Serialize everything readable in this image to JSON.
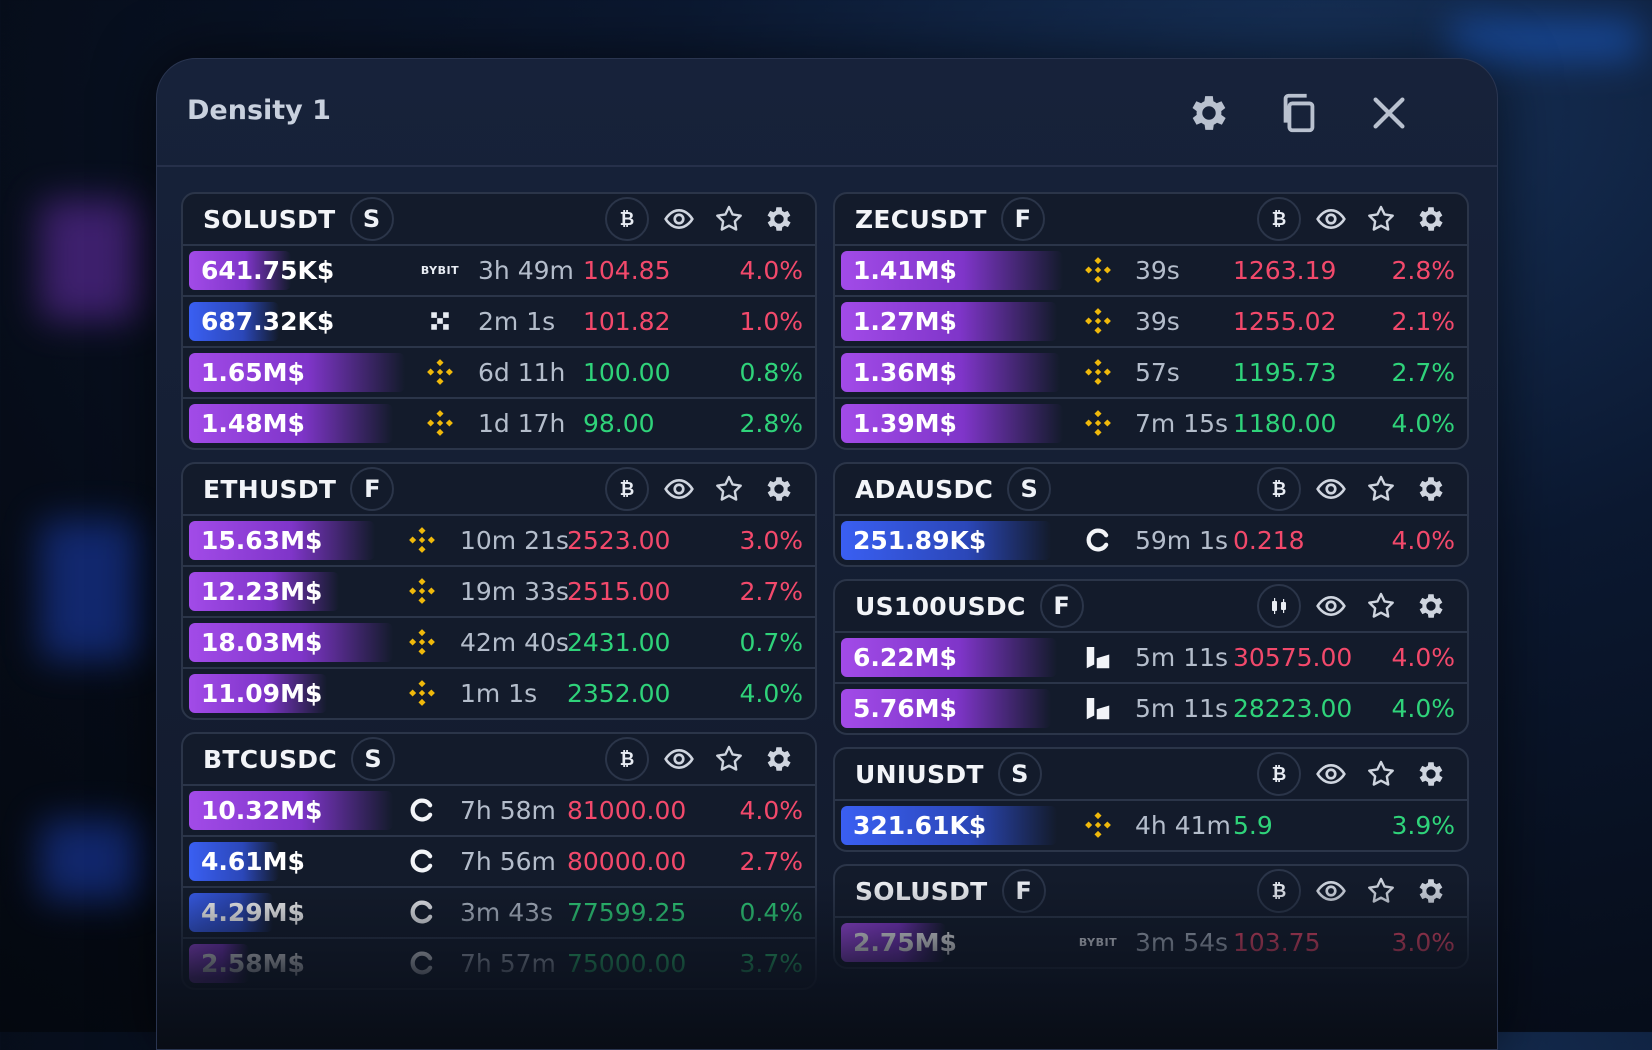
{
  "window": {
    "title": "Density 1"
  },
  "colors": {
    "red": "#f2496b",
    "green": "#2fd37a",
    "purple": "#a24be8",
    "blue": "#3a5ff2"
  },
  "columns": [
    {
      "cards": [
        {
          "symbol": "SOLUSDT",
          "market": "S",
          "base_icon": "bitcoin-icon",
          "rows": [
            {
              "amount": "641.75K$",
              "bar": "purple",
              "fill": 0.34,
              "exchange": "bybit",
              "exchange_label": "BYBIT",
              "time": "3h 49m",
              "price": "104.85",
              "pct": "4.0%",
              "side": "red"
            },
            {
              "amount": "687.32K$",
              "bar": "blue",
              "fill": 0.3,
              "exchange": "okx",
              "time": "2m 1s",
              "price": "101.82",
              "pct": "1.0%",
              "side": "red"
            },
            {
              "amount": "1.65M$",
              "bar": "purple",
              "fill": 0.72,
              "exchange": "binance",
              "time": "6d 11h",
              "price": "100.00",
              "pct": "0.8%",
              "side": "green"
            },
            {
              "amount": "1.48M$",
              "bar": "purple",
              "fill": 0.68,
              "exchange": "binance",
              "time": "1d 17h",
              "price": "98.00",
              "pct": "2.8%",
              "side": "green"
            }
          ]
        },
        {
          "symbol": "ETHUSDT",
          "market": "F",
          "base_icon": "bitcoin-icon",
          "rows": [
            {
              "amount": "15.63M$",
              "bar": "purple",
              "fill": 0.62,
              "exchange": "binance",
              "time": "10m 21s",
              "price": "2523.00",
              "pct": "3.0%",
              "side": "red"
            },
            {
              "amount": "12.23M$",
              "bar": "purple",
              "fill": 0.5,
              "exchange": "binance",
              "time": "19m 33s",
              "price": "2515.00",
              "pct": "2.7%",
              "side": "red"
            },
            {
              "amount": "18.03M$",
              "bar": "purple",
              "fill": 0.68,
              "exchange": "binance",
              "time": "42m 40s",
              "price": "2431.00",
              "pct": "0.7%",
              "side": "green"
            },
            {
              "amount": "11.09M$",
              "bar": "purple",
              "fill": 0.46,
              "exchange": "binance",
              "time": "1m 1s",
              "price": "2352.00",
              "pct": "4.0%",
              "side": "green"
            }
          ]
        },
        {
          "symbol": "BTCUSDC",
          "market": "S",
          "base_icon": "bitcoin-icon",
          "rows": [
            {
              "amount": "10.32M$",
              "bar": "purple",
              "fill": 0.68,
              "exchange": "coinbase",
              "time": "7h 58m",
              "price": "81000.00",
              "pct": "4.0%",
              "side": "red"
            },
            {
              "amount": "4.61M$",
              "bar": "blue",
              "fill": 0.3,
              "exchange": "coinbase",
              "time": "7h 56m",
              "price": "80000.00",
              "pct": "2.7%",
              "side": "red"
            },
            {
              "amount": "4.29M$",
              "bar": "blue",
              "fill": 0.28,
              "exchange": "coinbase",
              "time": "3m 43s",
              "price": "77599.25",
              "pct": "0.4%",
              "side": "green"
            },
            {
              "amount": "2.58M$",
              "bar": "purple",
              "fill": 0.2,
              "exchange": "coinbase",
              "time": "7h 57m",
              "price": "75000.00",
              "pct": "3.7%",
              "side": "green"
            }
          ]
        }
      ]
    },
    {
      "cards": [
        {
          "symbol": "ZECUSDT",
          "market": "F",
          "base_icon": "bitcoin-icon",
          "rows": [
            {
              "amount": "1.41M$",
              "bar": "purple",
              "fill": 0.74,
              "exchange": "binance",
              "time": "39s",
              "price": "1263.19",
              "pct": "2.8%",
              "side": "red"
            },
            {
              "amount": "1.27M$",
              "bar": "purple",
              "fill": 0.72,
              "exchange": "binance",
              "time": "39s",
              "price": "1255.02",
              "pct": "2.1%",
              "side": "red"
            },
            {
              "amount": "1.36M$",
              "bar": "purple",
              "fill": 0.73,
              "exchange": "binance",
              "time": "57s",
              "price": "1195.73",
              "pct": "2.7%",
              "side": "green"
            },
            {
              "amount": "1.39M$",
              "bar": "purple",
              "fill": 0.74,
              "exchange": "binance",
              "time": "7m 15s",
              "price": "1180.00",
              "pct": "4.0%",
              "side": "green"
            }
          ]
        },
        {
          "symbol": "ADAUSDC",
          "market": "S",
          "base_icon": "bitcoin-icon",
          "rows": [
            {
              "amount": "251.89K$",
              "bar": "blue",
              "fill": 0.7,
              "exchange": "coinbase",
              "time": "59m 1s",
              "price": "0.218",
              "pct": "4.0%",
              "side": "red"
            }
          ]
        },
        {
          "symbol": "US100USDC",
          "market": "F",
          "base_icon": "candles-icon",
          "rows": [
            {
              "amount": "6.22M$",
              "bar": "purple",
              "fill": 0.72,
              "exchange": "hyperliquid",
              "time": "5m 11s",
              "price": "30575.00",
              "pct": "4.0%",
              "side": "red"
            },
            {
              "amount": "5.76M$",
              "bar": "purple",
              "fill": 0.7,
              "exchange": "hyperliquid",
              "time": "5m 11s",
              "price": "28223.00",
              "pct": "4.0%",
              "side": "green"
            }
          ]
        },
        {
          "symbol": "UNIUSDT",
          "market": "S",
          "base_icon": "bitcoin-icon",
          "rows": [
            {
              "amount": "321.61K$",
              "bar": "blue",
              "fill": 0.72,
              "exchange": "binance",
              "time": "4h 41m",
              "price": "5.9",
              "pct": "3.9%",
              "side": "green"
            }
          ]
        },
        {
          "symbol": "SOLUSDT",
          "market": "F",
          "base_icon": "bitcoin-icon",
          "rows": [
            {
              "amount": "2.75M$",
              "bar": "purple",
              "fill": 0.35,
              "exchange": "bybit",
              "exchange_label": "BYBIT",
              "time": "3m 54s",
              "price": "103.75",
              "pct": "3.0%",
              "side": "red"
            }
          ]
        }
      ]
    }
  ]
}
